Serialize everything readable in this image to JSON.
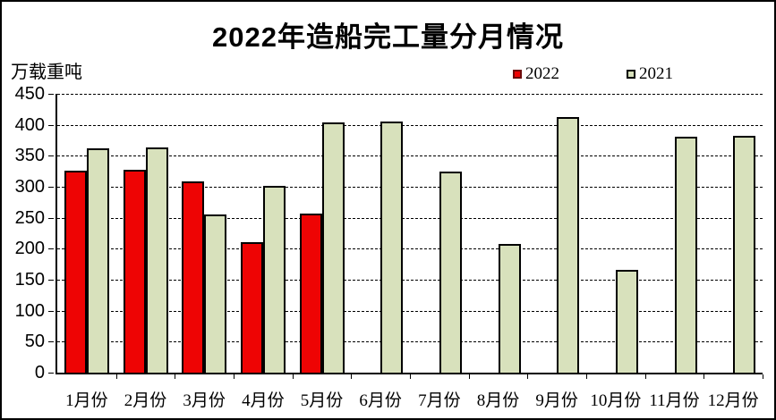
{
  "chart_data": {
    "type": "bar",
    "title": "2022年造船完工量分月情况",
    "ylabel": "万载重吨",
    "xlabel": "",
    "categories": [
      "1月份",
      "2月份",
      "3月份",
      "4月份",
      "5月份",
      "6月份",
      "7月份",
      "8月份",
      "9月份",
      "10月份",
      "11月份",
      "12月份"
    ],
    "series": [
      {
        "name": "2022",
        "color": "#ee0404",
        "border": "#000000",
        "values": [
          326,
          328,
          309,
          210,
          257,
          null,
          null,
          null,
          null,
          null,
          null,
          null
        ]
      },
      {
        "name": "2021",
        "color": "#d8e1bc",
        "border": "#000000",
        "values": [
          362,
          364,
          256,
          302,
          404,
          406,
          325,
          208,
          412,
          166,
          381,
          382
        ]
      }
    ],
    "ylim": [
      0,
      450
    ],
    "ytick_step": 50,
    "grid": "horizontal-dashed",
    "legend_position": "top-right",
    "colors": {
      "background": "#ffffff",
      "axis": "#000000",
      "legend_2022_border": "#6d0b0b",
      "legend_2021_border": "#000000"
    }
  }
}
